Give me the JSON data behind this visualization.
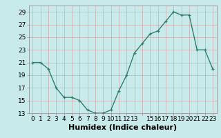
{
  "x": [
    0,
    1,
    2,
    3,
    4,
    5,
    6,
    7,
    8,
    9,
    10,
    11,
    12,
    13,
    14,
    15,
    16,
    17,
    18,
    19,
    20,
    21,
    22,
    23
  ],
  "y": [
    21.0,
    21.0,
    20.0,
    17.0,
    15.5,
    15.5,
    15.0,
    13.5,
    13.0,
    13.0,
    13.5,
    16.5,
    19.0,
    22.5,
    24.0,
    25.5,
    26.0,
    27.5,
    29.0,
    28.5,
    28.5,
    23.0,
    23.0,
    20.0
  ],
  "line_color": "#2e7d6e",
  "marker": "+",
  "bg_color": "#c8eaea",
  "grid_color": "#b0d8d8",
  "xlabel": "Humidex (Indice chaleur)",
  "ylim": [
    13,
    30
  ],
  "xlim": [
    -0.5,
    23.5
  ],
  "yticks": [
    13,
    15,
    17,
    19,
    21,
    23,
    25,
    27,
    29
  ],
  "xticks": [
    0,
    1,
    2,
    3,
    4,
    5,
    6,
    7,
    8,
    9,
    10,
    11,
    12,
    13,
    14,
    15,
    16,
    17,
    18,
    19,
    20,
    21,
    22,
    23
  ],
  "xtick_labels": [
    "0",
    "1",
    "2",
    "3",
    "4",
    "5",
    "6",
    "7",
    "8",
    "9",
    "10",
    "11",
    "12",
    "13",
    "",
    "15",
    "16",
    "17",
    "18",
    "19",
    "20",
    "21",
    "22",
    "23"
  ],
  "xlabel_fontsize": 8,
  "tick_fontsize": 6.5,
  "line_width": 1.0,
  "marker_size": 3.5
}
